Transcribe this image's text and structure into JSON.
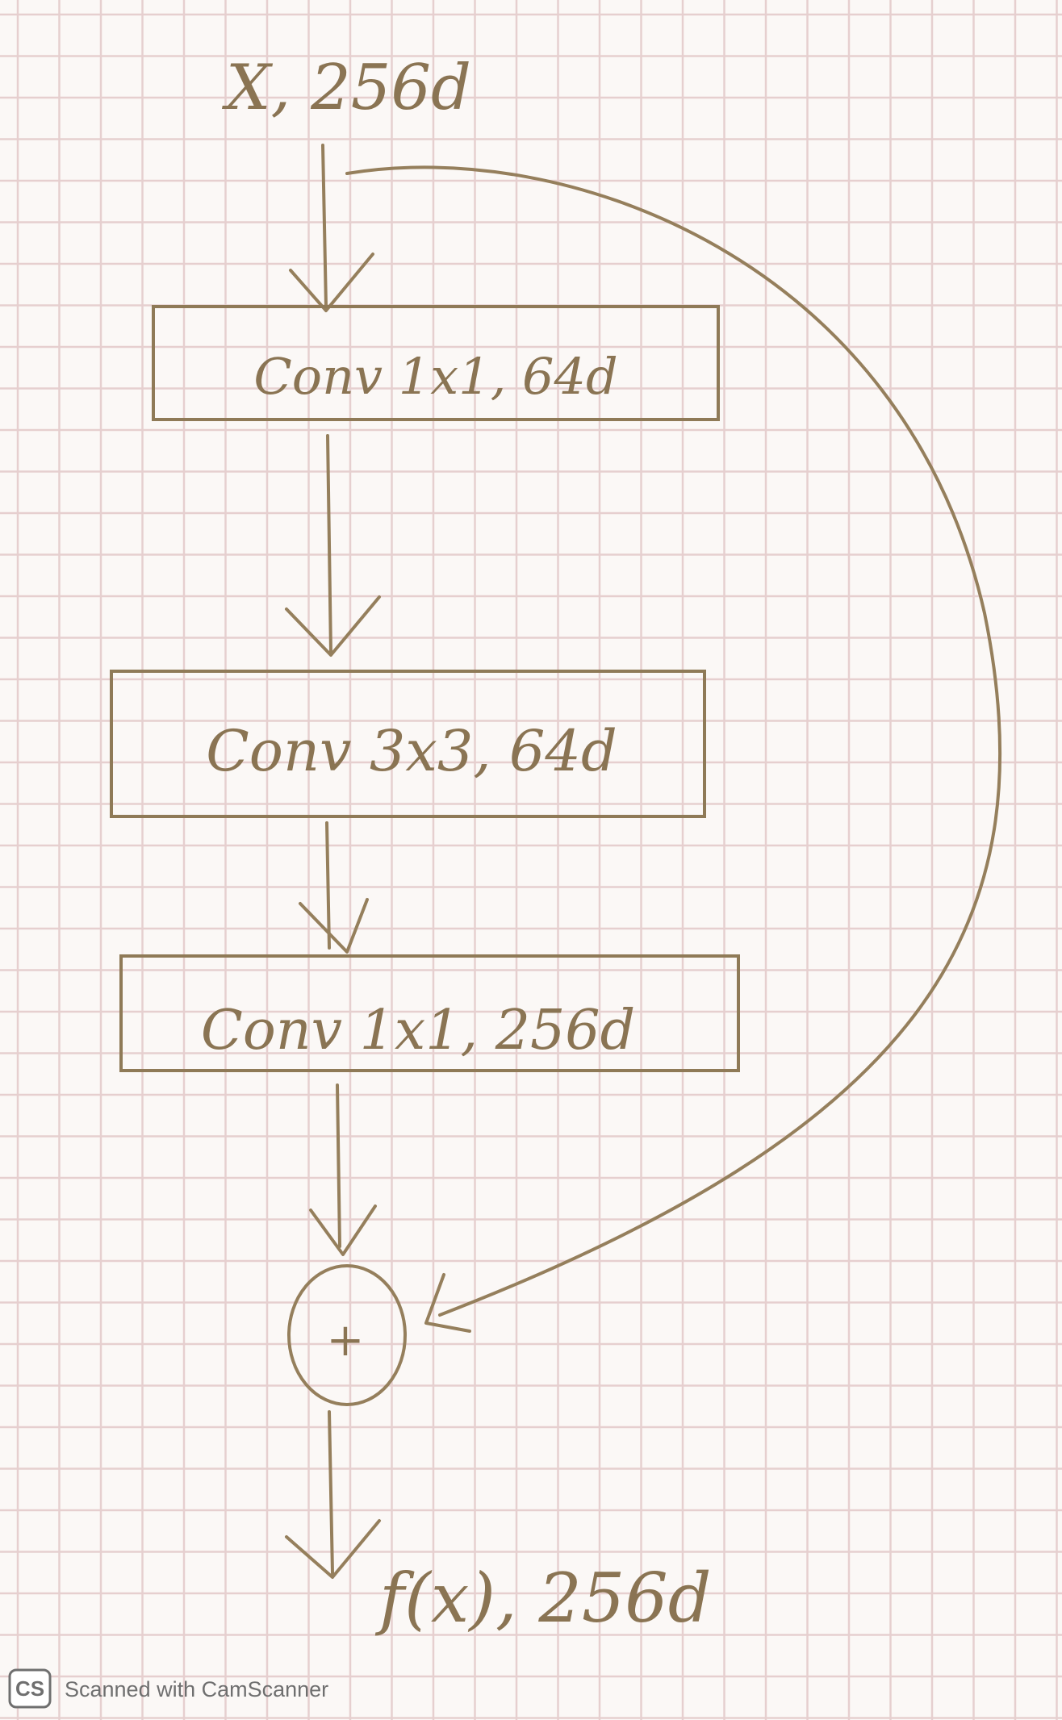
{
  "diagram": {
    "input_label": "X, 256d",
    "blocks": [
      {
        "label": "Conv 1x1, 64d"
      },
      {
        "label": "Conv 3x3, 64d"
      },
      {
        "label": "Conv 1x1, 256d"
      }
    ],
    "sum_symbol": "+",
    "output_label": "f(x), 256d"
  },
  "footer": {
    "logo_text": "CS",
    "text": "Scanned with CamScanner"
  },
  "colors": {
    "ink": "#8f7a57",
    "grid": "#e6cfcf",
    "paper": "#fbf8f6",
    "footer_text": "#6f6f6f"
  }
}
